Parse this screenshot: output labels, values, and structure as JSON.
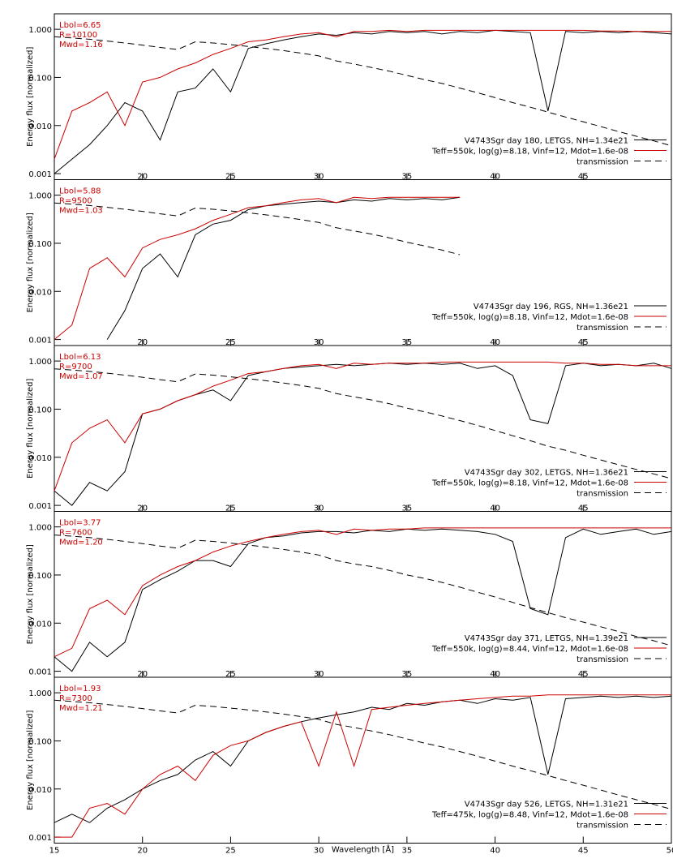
{
  "chart_data": [
    {
      "type": "line",
      "log_y": true,
      "ylabel": "Energy flux [normalized]",
      "annotations": [
        "Lbol=6.65",
        "R=10100",
        "Mwd=1.16"
      ],
      "annotation_color": "#cc0000",
      "x": [
        15,
        16,
        17,
        18,
        19,
        20,
        21,
        22,
        23,
        24,
        25,
        26,
        27,
        28,
        29,
        30,
        31,
        32,
        33,
        34,
        35,
        36,
        37,
        38,
        39,
        40,
        41,
        42,
        43,
        44,
        45,
        46,
        47,
        48,
        49,
        50
      ],
      "xlim": [
        15,
        50
      ],
      "ylim": [
        0.00075,
        2.1
      ],
      "xticks": [
        20,
        25,
        30,
        35,
        40,
        45
      ],
      "yticks": [
        0.001,
        {
          "value": 0.01,
          "label": "0.010"
        },
        {
          "value": 0.1,
          "label": "0.100"
        },
        {
          "value": 1,
          "label": "1.000"
        }
      ],
      "series": [
        {
          "name": "V4743Sgr day 180, LETGS, NH=1.34e21",
          "color": "#000000",
          "values": [
            0.001,
            0.002,
            0.004,
            0.01,
            0.03,
            0.02,
            0.005,
            0.05,
            0.06,
            0.15,
            0.05,
            0.4,
            0.5,
            0.6,
            0.7,
            0.8,
            0.75,
            0.85,
            0.8,
            0.9,
            0.85,
            0.9,
            0.8,
            0.9,
            0.85,
            0.95,
            0.9,
            0.85,
            0.02,
            0.9,
            0.85,
            0.9,
            0.85,
            0.9,
            0.85,
            0.8
          ]
        },
        {
          "name": "Teff=550k, log(g)=8.18, Vinf=12, Mdot=1.6e-08",
          "color": "#cc0000",
          "values": [
            0.002,
            0.02,
            0.03,
            0.05,
            0.01,
            0.08,
            0.1,
            0.15,
            0.2,
            0.3,
            0.4,
            0.55,
            0.6,
            0.7,
            0.8,
            0.85,
            0.7,
            0.9,
            0.9,
            0.95,
            0.9,
            0.95,
            0.95,
            0.95,
            0.95,
            0.95,
            0.95,
            0.95,
            0.95,
            0.95,
            0.95,
            0.92,
            0.92,
            0.9,
            0.9,
            0.9
          ]
        },
        {
          "name": "transmission",
          "color": "#000000",
          "dash": true,
          "values": [
            0.7,
            0.66,
            0.62,
            0.57,
            0.52,
            0.47,
            0.42,
            0.38,
            0.55,
            0.52,
            0.48,
            0.44,
            0.4,
            0.36,
            0.32,
            0.28,
            0.22,
            0.19,
            0.16,
            0.135,
            0.11,
            0.09,
            0.075,
            0.06,
            0.048,
            0.038,
            0.03,
            0.024,
            0.019,
            0.015,
            0.012,
            0.0095,
            0.0075,
            0.006,
            0.0048,
            0.0038
          ]
        }
      ]
    },
    {
      "type": "line",
      "log_y": true,
      "ylabel": "Energy flux [normalized]",
      "annotations": [
        "Lbol=5.88",
        "R=9500",
        "Mwd=1.03"
      ],
      "annotation_color": "#cc0000",
      "x": [
        15,
        16,
        17,
        18,
        19,
        20,
        21,
        22,
        23,
        24,
        25,
        26,
        27,
        28,
        29,
        30,
        31,
        32,
        33,
        34,
        35,
        36,
        37,
        38,
        39,
        40,
        41,
        42,
        43,
        44,
        45,
        46,
        47,
        48,
        49,
        50
      ],
      "xlim": [
        15,
        50
      ],
      "ylim": [
        0.00075,
        2.1
      ],
      "xticks": [
        20,
        25,
        30,
        35,
        40,
        45
      ],
      "yticks": [
        0.001,
        {
          "value": 0.01,
          "label": "0.010"
        },
        {
          "value": 0.1,
          "label": "0.100"
        },
        {
          "value": 1,
          "label": "1.000"
        }
      ],
      "series": [
        {
          "name": "V4743Sgr day 196, RGS, NH=1.36e21",
          "color": "#000000",
          "values": [
            null,
            null,
            null,
            0.001,
            0.004,
            0.03,
            0.06,
            0.02,
            0.15,
            0.25,
            0.3,
            0.5,
            0.6,
            0.65,
            0.7,
            0.75,
            0.7,
            0.8,
            0.75,
            0.85,
            0.8,
            0.85,
            0.8,
            0.9,
            null,
            null,
            null,
            null,
            null,
            null,
            null,
            null,
            null,
            null,
            null,
            null
          ]
        },
        {
          "name": "Teff=550k, log(g)=8.18, Vinf=12, Mdot=1.6e-08",
          "color": "#cc0000",
          "values": [
            0.001,
            0.002,
            0.03,
            0.05,
            0.02,
            0.08,
            0.12,
            0.15,
            0.2,
            0.3,
            0.4,
            0.55,
            0.6,
            0.7,
            0.8,
            0.85,
            0.7,
            0.9,
            0.85,
            0.9,
            0.9,
            0.9,
            0.9,
            0.9,
            null,
            null,
            null,
            null,
            null,
            null,
            null,
            null,
            null,
            null,
            null,
            null
          ]
        },
        {
          "name": "transmission",
          "color": "#000000",
          "dash": true,
          "values": [
            0.69,
            0.65,
            0.61,
            0.56,
            0.51,
            0.46,
            0.41,
            0.37,
            0.54,
            0.51,
            0.47,
            0.43,
            0.39,
            0.35,
            0.31,
            0.27,
            0.21,
            0.18,
            0.155,
            0.13,
            0.105,
            0.088,
            0.072,
            0.058,
            null,
            null,
            null,
            null,
            null,
            null,
            null,
            null,
            null,
            null,
            null,
            null
          ]
        }
      ]
    },
    {
      "type": "line",
      "log_y": true,
      "ylabel": "Energy flux [normalized]",
      "annotations": [
        "Lbol=6.13",
        "R=9700",
        "Mwd=1.07"
      ],
      "annotation_color": "#cc0000",
      "x": [
        15,
        16,
        17,
        18,
        19,
        20,
        21,
        22,
        23,
        24,
        25,
        26,
        27,
        28,
        29,
        30,
        31,
        32,
        33,
        34,
        35,
        36,
        37,
        38,
        39,
        40,
        41,
        42,
        43,
        44,
        45,
        46,
        47,
        48,
        49,
        50
      ],
      "xlim": [
        15,
        50
      ],
      "ylim": [
        0.00075,
        2.1
      ],
      "xticks": [
        20,
        25,
        30,
        35,
        40,
        45
      ],
      "yticks": [
        0.001,
        {
          "value": 0.01,
          "label": "0.010"
        },
        {
          "value": 0.1,
          "label": "0.100"
        },
        {
          "value": 1,
          "label": "1.000"
        }
      ],
      "series": [
        {
          "name": "V4743Sgr day 302, LETGS, NH=1.36e21",
          "color": "#000000",
          "values": [
            0.002,
            0.001,
            0.003,
            0.002,
            0.005,
            0.08,
            0.1,
            0.15,
            0.2,
            0.25,
            0.15,
            0.5,
            0.6,
            0.7,
            0.75,
            0.8,
            0.85,
            0.8,
            0.85,
            0.9,
            0.85,
            0.9,
            0.85,
            0.9,
            0.7,
            0.8,
            0.5,
            0.06,
            0.05,
            0.8,
            0.9,
            0.8,
            0.85,
            0.8,
            0.9,
            0.7
          ]
        },
        {
          "name": "Teff=550k, log(g)=8.18, Vinf=12, Mdot=1.6e-08",
          "color": "#cc0000",
          "values": [
            0.002,
            0.02,
            0.04,
            0.06,
            0.02,
            0.08,
            0.1,
            0.15,
            0.2,
            0.3,
            0.4,
            0.55,
            0.6,
            0.7,
            0.8,
            0.85,
            0.7,
            0.9,
            0.85,
            0.9,
            0.9,
            0.9,
            0.95,
            0.95,
            0.95,
            0.95,
            0.95,
            0.95,
            0.95,
            0.9,
            0.9,
            0.85,
            0.85,
            0.8,
            0.8,
            0.8
          ]
        },
        {
          "name": "transmission",
          "color": "#000000",
          "dash": true,
          "values": [
            0.69,
            0.65,
            0.61,
            0.56,
            0.51,
            0.46,
            0.41,
            0.37,
            0.54,
            0.51,
            0.47,
            0.43,
            0.39,
            0.35,
            0.31,
            0.27,
            0.21,
            0.18,
            0.155,
            0.13,
            0.105,
            0.088,
            0.072,
            0.058,
            0.046,
            0.036,
            0.028,
            0.022,
            0.017,
            0.014,
            0.011,
            0.0088,
            0.007,
            0.0056,
            0.0045,
            0.0036
          ]
        }
      ]
    },
    {
      "type": "line",
      "log_y": true,
      "ylabel": "Energy flux [normalized]",
      "annotations": [
        "Lbol=3.77",
        "R=7600",
        "Mwd=1.20"
      ],
      "annotation_color": "#cc0000",
      "x": [
        15,
        16,
        17,
        18,
        19,
        20,
        21,
        22,
        23,
        24,
        25,
        26,
        27,
        28,
        29,
        30,
        31,
        32,
        33,
        34,
        35,
        36,
        37,
        38,
        39,
        40,
        41,
        42,
        43,
        44,
        45,
        46,
        47,
        48,
        49,
        50
      ],
      "xlim": [
        15,
        50
      ],
      "ylim": [
        0.00075,
        2.1
      ],
      "xticks": [
        20,
        25,
        30,
        35,
        40,
        45
      ],
      "yticks": [
        0.001,
        {
          "value": 0.01,
          "label": "0.010"
        },
        {
          "value": 0.1,
          "label": "0.100"
        },
        {
          "value": 1,
          "label": "1.000"
        }
      ],
      "series": [
        {
          "name": "V4743Sgr day 371, LETGS, NH=1.39e21",
          "color": "#000000",
          "values": [
            0.002,
            0.001,
            0.004,
            0.002,
            0.004,
            0.05,
            0.08,
            0.12,
            0.2,
            0.2,
            0.15,
            0.45,
            0.6,
            0.65,
            0.75,
            0.8,
            0.8,
            0.75,
            0.85,
            0.8,
            0.9,
            0.85,
            0.9,
            0.85,
            0.8,
            0.7,
            0.5,
            0.02,
            0.015,
            0.6,
            0.9,
            0.7,
            0.8,
            0.9,
            0.7,
            0.8
          ]
        },
        {
          "name": "Teff=550k, log(g)=8.44, Vinf=12, Mdot=1.6e-08",
          "color": "#cc0000",
          "values": [
            0.002,
            0.003,
            0.02,
            0.03,
            0.015,
            0.06,
            0.1,
            0.15,
            0.2,
            0.3,
            0.4,
            0.5,
            0.6,
            0.7,
            0.8,
            0.85,
            0.7,
            0.9,
            0.85,
            0.9,
            0.9,
            0.95,
            0.95,
            0.95,
            0.95,
            0.95,
            0.95,
            0.95,
            0.95,
            0.95,
            0.95,
            0.95,
            0.95,
            0.95,
            0.95,
            0.95
          ]
        },
        {
          "name": "transmission",
          "color": "#000000",
          "dash": true,
          "values": [
            0.68,
            0.64,
            0.6,
            0.55,
            0.5,
            0.45,
            0.4,
            0.36,
            0.53,
            0.5,
            0.46,
            0.42,
            0.38,
            0.34,
            0.3,
            0.26,
            0.2,
            0.17,
            0.15,
            0.125,
            0.1,
            0.085,
            0.07,
            0.056,
            0.044,
            0.035,
            0.027,
            0.021,
            0.0165,
            0.013,
            0.0105,
            0.0084,
            0.0067,
            0.0053,
            0.0043,
            0.0034
          ]
        }
      ]
    },
    {
      "type": "line",
      "log_y": true,
      "ylabel": "Energy flux [normalized]",
      "xlabel": "Wavelength [Å]",
      "annotations": [
        "Lbol=1.93",
        "R=7300",
        "Mwd=1.21"
      ],
      "annotation_color": "#cc0000",
      "x": [
        15,
        16,
        17,
        18,
        19,
        20,
        21,
        22,
        23,
        24,
        25,
        26,
        27,
        28,
        29,
        30,
        31,
        32,
        33,
        34,
        35,
        36,
        37,
        38,
        39,
        40,
        41,
        42,
        43,
        44,
        45,
        46,
        47,
        48,
        49,
        50
      ],
      "xlim": [
        15,
        50
      ],
      "ylim": [
        0.00075,
        2.1
      ],
      "xticks": [
        15,
        20,
        25,
        30,
        35,
        40,
        45,
        50
      ],
      "yticks": [
        0.001,
        {
          "value": 0.01,
          "label": "0.010"
        },
        {
          "value": 0.1,
          "label": "0.100"
        },
        {
          "value": 1,
          "label": "1.000"
        }
      ],
      "series": [
        {
          "name": "V4743Sgr day 526, LETGS, NH=1.31e21",
          "color": "#000000",
          "values": [
            0.002,
            0.003,
            0.002,
            0.004,
            0.006,
            0.01,
            0.015,
            0.02,
            0.04,
            0.06,
            0.03,
            0.1,
            0.15,
            0.2,
            0.25,
            0.3,
            0.35,
            0.4,
            0.5,
            0.45,
            0.6,
            0.55,
            0.65,
            0.7,
            0.6,
            0.75,
            0.7,
            0.8,
            0.02,
            0.75,
            0.8,
            0.85,
            0.8,
            0.85,
            0.8,
            0.85
          ]
        },
        {
          "name": "Teff=475k, log(g)=8.48, Vinf=12, Mdot=1.6e-08",
          "color": "#cc0000",
          "values": [
            0.001,
            0.001,
            0.004,
            0.005,
            0.003,
            0.01,
            0.02,
            0.03,
            0.015,
            0.05,
            0.08,
            0.1,
            0.15,
            0.2,
            0.25,
            0.03,
            0.4,
            0.03,
            0.45,
            0.5,
            0.55,
            0.6,
            0.65,
            0.7,
            0.75,
            0.8,
            0.85,
            0.85,
            0.9,
            0.9,
            0.9,
            0.9,
            0.9,
            0.9,
            0.9,
            0.9
          ]
        },
        {
          "name": "transmission",
          "color": "#000000",
          "dash": true,
          "values": [
            0.7,
            0.66,
            0.62,
            0.57,
            0.52,
            0.47,
            0.42,
            0.38,
            0.55,
            0.52,
            0.48,
            0.44,
            0.4,
            0.36,
            0.32,
            0.28,
            0.22,
            0.19,
            0.16,
            0.135,
            0.11,
            0.09,
            0.075,
            0.06,
            0.048,
            0.038,
            0.03,
            0.024,
            0.019,
            0.015,
            0.012,
            0.0095,
            0.0075,
            0.006,
            0.0048,
            0.0038
          ]
        }
      ]
    }
  ]
}
